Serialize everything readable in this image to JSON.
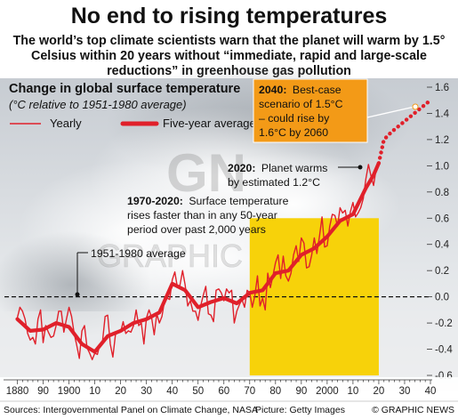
{
  "header": {
    "title": "No end to rising temperatures",
    "subtitle": "The world’s top climate scientists warn that the planet will warm by 1.5° Celsius within 20 years without “immediate, rapid and large-scale reductions” in greenhouse gas pollution"
  },
  "panel": {
    "title": "Change in global surface temperature",
    "subtitle": "(°C relative to 1951-1980 average)"
  },
  "legend": {
    "yearly": "Yearly",
    "five_year": "Five-year average"
  },
  "annotations": {
    "baseline": "1951-1980 average",
    "a1970_bold": "1970-2020:",
    "a1970_l1": "Surface temperature",
    "a1970_l2": "rises faster than in any 50-year",
    "a1970_l3": "period over past 2,000 years",
    "a2020_bold": "2020:",
    "a2020_l1": "Planet warms",
    "a2020_l2": "by estimated 1.2°C",
    "a2040_bold": "2040:",
    "a2040_l1": "Best-case",
    "a2040_l2": "scenario of 1.5°C",
    "a2040_l3": "– could rise by",
    "a2040_l4": "1.6°C by 2060"
  },
  "footer": {
    "sources": "Sources: Intergovernmental Panel on Climate Change, NASA",
    "picture": "Picture: Getty Images",
    "credit": "© GRAPHIC NEWS"
  },
  "watermark": {
    "logo": "GN",
    "text": "GRAPHIC NEWS"
  },
  "colors": {
    "series": "#e0202a",
    "highlight": "#f7d20a",
    "callout": "#f39a17",
    "baseline": "#111111"
  },
  "chart_data": {
    "type": "line",
    "xlim": [
      1875,
      2040
    ],
    "ylim": [
      -0.6,
      1.6
    ],
    "yticks": [
      -0.6,
      -0.4,
      -0.2,
      0.0,
      0.2,
      0.4,
      0.6,
      0.8,
      1.0,
      1.2,
      1.4,
      1.6
    ],
    "ytick_labels": [
      "-0.6",
      "-0.4",
      "-0.2",
      "0.0",
      "0.2",
      "0.4",
      "0.6",
      "0.8",
      "1.0",
      "1.2",
      "1.4",
      "1.6"
    ],
    "xticks": [
      1880,
      1890,
      1900,
      1910,
      1920,
      1930,
      1940,
      1950,
      1960,
      1970,
      1980,
      1990,
      2000,
      2010,
      2020,
      2030,
      2040
    ],
    "xtick_labels": [
      "1880",
      "90",
      "1900",
      "10",
      "20",
      "30",
      "40",
      "50",
      "60",
      "70",
      "80",
      "90",
      "2000",
      "10",
      "20",
      "30",
      "40"
    ],
    "highlight_range": [
      1970,
      2020
    ],
    "series": [
      {
        "name": "Yearly",
        "x": [
          1880,
          1881,
          1882,
          1883,
          1884,
          1885,
          1886,
          1887,
          1888,
          1889,
          1890,
          1891,
          1892,
          1893,
          1894,
          1895,
          1896,
          1897,
          1898,
          1899,
          1900,
          1901,
          1902,
          1903,
          1904,
          1905,
          1906,
          1907,
          1908,
          1909,
          1910,
          1911,
          1912,
          1913,
          1914,
          1915,
          1916,
          1917,
          1918,
          1919,
          1920,
          1921,
          1922,
          1923,
          1924,
          1925,
          1926,
          1927,
          1928,
          1929,
          1930,
          1931,
          1932,
          1933,
          1934,
          1935,
          1936,
          1937,
          1938,
          1939,
          1940,
          1941,
          1942,
          1943,
          1944,
          1945,
          1946,
          1947,
          1948,
          1949,
          1950,
          1951,
          1952,
          1953,
          1954,
          1955,
          1956,
          1957,
          1958,
          1959,
          1960,
          1961,
          1962,
          1963,
          1964,
          1965,
          1966,
          1967,
          1968,
          1969,
          1970,
          1971,
          1972,
          1973,
          1974,
          1975,
          1976,
          1977,
          1978,
          1979,
          1980,
          1981,
          1982,
          1983,
          1984,
          1985,
          1986,
          1987,
          1988,
          1989,
          1990,
          1991,
          1992,
          1993,
          1994,
          1995,
          1996,
          1997,
          1998,
          1999,
          2000,
          2001,
          2002,
          2003,
          2004,
          2005,
          2006,
          2007,
          2008,
          2009,
          2010,
          2011,
          2012,
          2013,
          2014,
          2015,
          2016,
          2017,
          2018,
          2019,
          2020
        ],
        "y": [
          -0.16,
          -0.08,
          -0.11,
          -0.17,
          -0.28,
          -0.33,
          -0.31,
          -0.36,
          -0.17,
          -0.1,
          -0.35,
          -0.22,
          -0.27,
          -0.31,
          -0.3,
          -0.22,
          -0.11,
          -0.11,
          -0.27,
          -0.17,
          -0.08,
          -0.15,
          -0.28,
          -0.37,
          -0.47,
          -0.26,
          -0.22,
          -0.39,
          -0.43,
          -0.48,
          -0.43,
          -0.44,
          -0.36,
          -0.34,
          -0.15,
          -0.14,
          -0.36,
          -0.46,
          -0.29,
          -0.27,
          -0.27,
          -0.19,
          -0.28,
          -0.26,
          -0.27,
          -0.22,
          -0.1,
          -0.22,
          -0.2,
          -0.36,
          -0.16,
          -0.1,
          -0.16,
          -0.29,
          -0.13,
          -0.2,
          -0.15,
          -0.03,
          -0.01,
          -0.02,
          0.13,
          0.19,
          0.07,
          0.09,
          0.2,
          0.09,
          -0.07,
          -0.03,
          -0.11,
          -0.11,
          -0.18,
          -0.07,
          0.01,
          0.08,
          -0.13,
          -0.14,
          -0.19,
          0.05,
          0.06,
          0.03,
          -0.03,
          0.06,
          0.03,
          0.05,
          -0.2,
          -0.11,
          -0.06,
          -0.02,
          -0.08,
          0.05,
          0.03,
          -0.08,
          0.01,
          0.16,
          -0.07,
          -0.01,
          -0.1,
          0.18,
          0.07,
          0.16,
          0.26,
          0.32,
          0.14,
          0.31,
          0.16,
          0.12,
          0.18,
          0.32,
          0.39,
          0.27,
          0.45,
          0.41,
          0.22,
          0.23,
          0.32,
          0.45,
          0.33,
          0.46,
          0.61,
          0.38,
          0.39,
          0.54,
          0.63,
          0.62,
          0.54,
          0.68,
          0.64,
          0.66,
          0.54,
          0.65,
          0.72,
          0.61,
          0.64,
          0.68,
          0.75,
          0.9,
          1.01,
          0.92,
          0.85,
          0.98,
          1.02
        ]
      },
      {
        "name": "Five-year average",
        "x": [
          1880,
          1885,
          1890,
          1895,
          1900,
          1905,
          1910,
          1915,
          1920,
          1925,
          1930,
          1935,
          1940,
          1945,
          1950,
          1955,
          1960,
          1965,
          1970,
          1975,
          1980,
          1985,
          1990,
          1995,
          2000,
          2005,
          2010,
          2015,
          2018,
          2020,
          2022,
          2025,
          2030,
          2035,
          2040
        ],
        "y": [
          -0.17,
          -0.26,
          -0.25,
          -0.2,
          -0.23,
          -0.36,
          -0.42,
          -0.3,
          -0.26,
          -0.2,
          -0.17,
          -0.12,
          0.1,
          0.05,
          -0.08,
          -0.04,
          -0.01,
          -0.05,
          0.03,
          0.05,
          0.18,
          0.2,
          0.32,
          0.37,
          0.46,
          0.58,
          0.63,
          0.83,
          0.93,
          1.02,
          1.2,
          1.26,
          1.34,
          1.42,
          1.5
        ]
      }
    ]
  }
}
